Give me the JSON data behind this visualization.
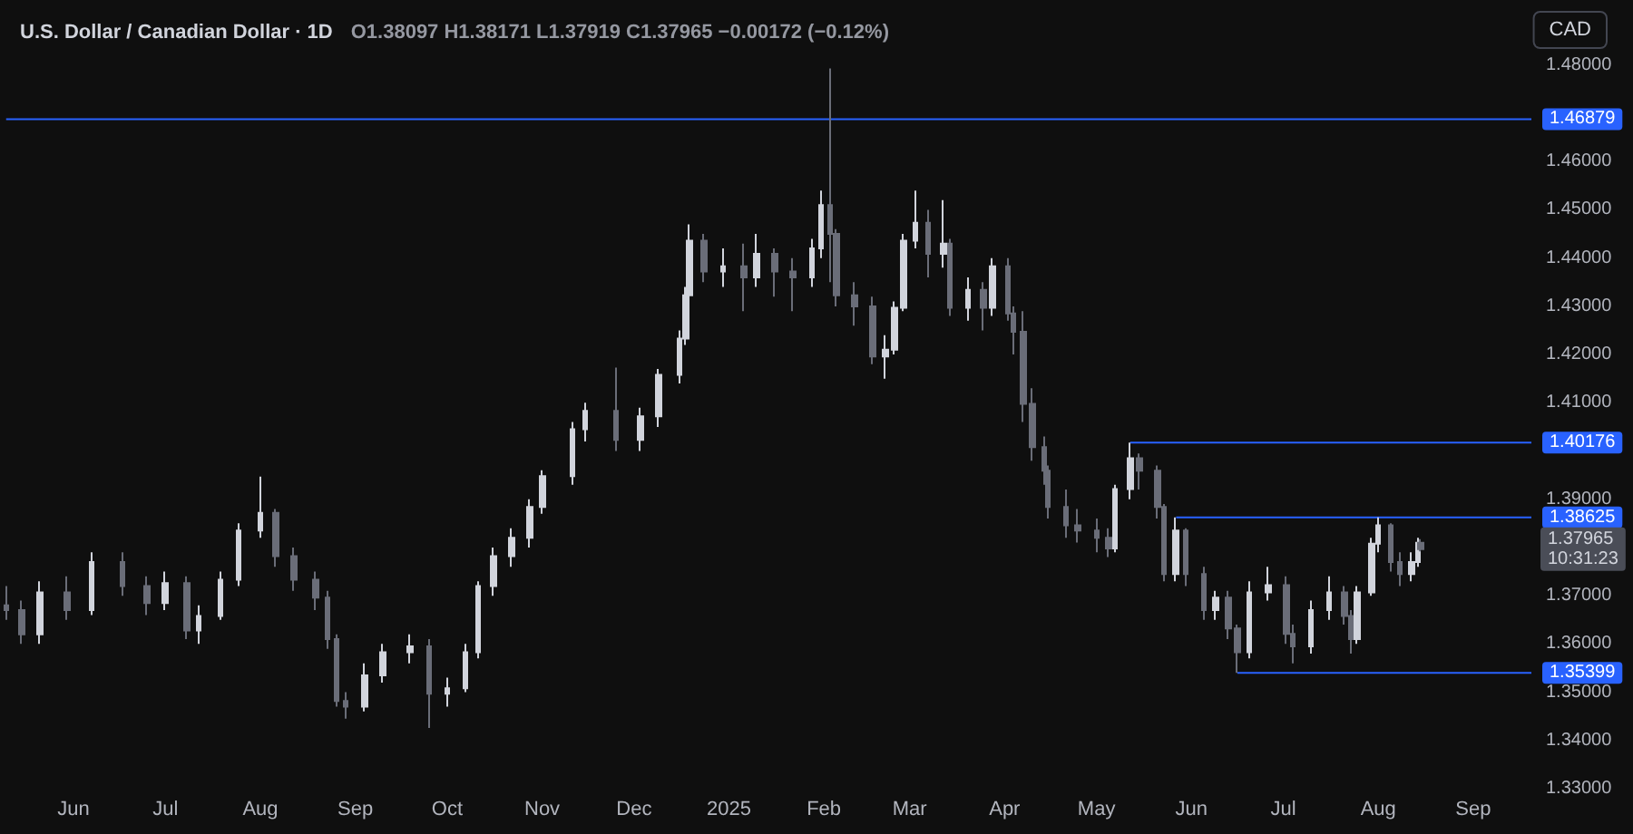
{
  "chart_data": {
    "type": "candlestick",
    "title": "U.S. Dollar / Canadian Dollar · 1D",
    "subtitle": "O1.38097 H1.38171 L1.37919 C1.37965 −0.00172 (−0.12%)",
    "ylabel": "CAD",
    "x": [
      "2024-05-10",
      "2024-05-15",
      "2024-05-21",
      "2024-05-30",
      "2024-06-07",
      "2024-06-17",
      "2024-06-25",
      "2024-07-01",
      "2024-07-08",
      "2024-07-12",
      "2024-07-19",
      "2024-07-25",
      "2024-08-01",
      "2024-08-06",
      "2024-08-12",
      "2024-08-19",
      "2024-08-23",
      "2024-08-26",
      "2024-08-29",
      "2024-09-04",
      "2024-09-10",
      "2024-09-19",
      "2024-09-25",
      "2024-10-01",
      "2024-10-07",
      "2024-10-11",
      "2024-10-16",
      "2024-10-22",
      "2024-10-28",
      "2024-11-01",
      "2024-11-11",
      "2024-11-15",
      "2024-11-25",
      "2024-12-03",
      "2024-12-09",
      "2024-12-16",
      "2024-12-18",
      "2024-12-19",
      "2024-12-24",
      "2024-12-30",
      "2025-01-06",
      "2025-01-10",
      "2025-01-16",
      "2025-01-22",
      "2025-01-28",
      "2025-01-31",
      "2025-02-03",
      "2025-02-05",
      "2025-02-11",
      "2025-02-17",
      "2025-02-21",
      "2025-02-24",
      "2025-02-27",
      "2025-03-03",
      "2025-03-07",
      "2025-03-12",
      "2025-03-14",
      "2025-03-20",
      "2025-03-25",
      "2025-03-28",
      "2025-04-02",
      "2025-04-04",
      "2025-04-07",
      "2025-04-10",
      "2025-04-14",
      "2025-04-15",
      "2025-04-21",
      "2025-04-25",
      "2025-05-01",
      "2025-05-05",
      "2025-05-07",
      "2025-05-12",
      "2025-05-15",
      "2025-05-21",
      "2025-05-23",
      "2025-05-27",
      "2025-05-30",
      "2025-06-05",
      "2025-06-09",
      "2025-06-13",
      "2025-06-16",
      "2025-06-20",
      "2025-06-26",
      "2025-07-02",
      "2025-07-04",
      "2025-07-10",
      "2025-07-16",
      "2025-07-21",
      "2025-07-23",
      "2025-07-25",
      "2025-07-30",
      "2025-08-01",
      "2025-08-05",
      "2025-08-08",
      "2025-08-12",
      "2025-08-14",
      "2025-08-15"
    ],
    "ohlc": [
      [
        1.368,
        1.372,
        1.365,
        1.367
      ],
      [
        1.367,
        1.369,
        1.36,
        1.362
      ],
      [
        1.362,
        1.373,
        1.36,
        1.3707
      ],
      [
        1.3707,
        1.374,
        1.365,
        1.367
      ],
      [
        1.367,
        1.379,
        1.366,
        1.377
      ],
      [
        1.377,
        1.379,
        1.37,
        1.372
      ],
      [
        1.372,
        1.374,
        1.366,
        1.3685
      ],
      [
        1.3685,
        1.375,
        1.367,
        1.3726
      ],
      [
        1.3726,
        1.374,
        1.361,
        1.3628
      ],
      [
        1.3628,
        1.368,
        1.36,
        1.3658
      ],
      [
        1.3658,
        1.375,
        1.365,
        1.3733
      ],
      [
        1.3733,
        1.385,
        1.372,
        1.3835
      ],
      [
        1.3835,
        1.3947,
        1.382,
        1.3872
      ],
      [
        1.3872,
        1.388,
        1.376,
        1.3782
      ],
      [
        1.3782,
        1.38,
        1.371,
        1.3733
      ],
      [
        1.3733,
        1.375,
        1.367,
        1.3696
      ],
      [
        1.3696,
        1.371,
        1.359,
        1.361
      ],
      [
        1.361,
        1.362,
        1.347,
        1.3482
      ],
      [
        1.3482,
        1.35,
        1.3445,
        1.347
      ],
      [
        1.347,
        1.356,
        1.346,
        1.3535
      ],
      [
        1.3535,
        1.36,
        1.352,
        1.3583
      ],
      [
        1.3583,
        1.362,
        1.356,
        1.3595
      ],
      [
        1.3595,
        1.361,
        1.3426,
        1.3497
      ],
      [
        1.3497,
        1.353,
        1.347,
        1.3508
      ],
      [
        1.3508,
        1.36,
        1.35,
        1.3583
      ],
      [
        1.3583,
        1.373,
        1.357,
        1.372
      ],
      [
        1.372,
        1.38,
        1.37,
        1.3782
      ],
      [
        1.3782,
        1.384,
        1.376,
        1.382
      ],
      [
        1.382,
        1.39,
        1.38,
        1.3884
      ],
      [
        1.3884,
        1.396,
        1.387,
        1.3948
      ],
      [
        1.3948,
        1.406,
        1.393,
        1.4045
      ],
      [
        1.4045,
        1.41,
        1.402,
        1.4083
      ],
      [
        1.4083,
        1.4173,
        1.4,
        1.4023
      ],
      [
        1.4023,
        1.409,
        1.4,
        1.4072
      ],
      [
        1.4072,
        1.417,
        1.405,
        1.4158
      ],
      [
        1.4158,
        1.425,
        1.414,
        1.4233
      ],
      [
        1.4233,
        1.434,
        1.422,
        1.4323
      ],
      [
        1.4323,
        1.447,
        1.43,
        1.4436
      ],
      [
        1.4436,
        1.445,
        1.435,
        1.4372
      ],
      [
        1.4372,
        1.442,
        1.434,
        1.4383
      ],
      [
        1.4383,
        1.443,
        1.429,
        1.436
      ],
      [
        1.436,
        1.445,
        1.434,
        1.4409
      ],
      [
        1.4409,
        1.442,
        1.432,
        1.4372
      ],
      [
        1.4372,
        1.44,
        1.429,
        1.436
      ],
      [
        1.436,
        1.444,
        1.434,
        1.442
      ],
      [
        1.442,
        1.454,
        1.44,
        1.451
      ],
      [
        1.451,
        1.4793,
        1.435,
        1.445
      ],
      [
        1.445,
        1.446,
        1.43,
        1.4323
      ],
      [
        1.4323,
        1.435,
        1.426,
        1.43
      ],
      [
        1.43,
        1.432,
        1.418,
        1.4196
      ],
      [
        1.4196,
        1.424,
        1.415,
        1.421
      ],
      [
        1.421,
        1.431,
        1.42,
        1.4297
      ],
      [
        1.4297,
        1.445,
        1.429,
        1.4436
      ],
      [
        1.4436,
        1.454,
        1.442,
        1.4473
      ],
      [
        1.4473,
        1.45,
        1.436,
        1.4409
      ],
      [
        1.4409,
        1.452,
        1.438,
        1.443
      ],
      [
        1.443,
        1.444,
        1.428,
        1.4297
      ],
      [
        1.4297,
        1.436,
        1.427,
        1.4334
      ],
      [
        1.4334,
        1.435,
        1.425,
        1.4297
      ],
      [
        1.4297,
        1.44,
        1.428,
        1.4383
      ],
      [
        1.4383,
        1.44,
        1.427,
        1.4285
      ],
      [
        1.4285,
        1.43,
        1.42,
        1.4247
      ],
      [
        1.4247,
        1.429,
        1.406,
        1.4098
      ],
      [
        1.4098,
        1.413,
        1.398,
        1.4008
      ],
      [
        1.4008,
        1.403,
        1.393,
        1.3959
      ],
      [
        1.3959,
        1.397,
        1.386,
        1.3884
      ],
      [
        1.3884,
        1.392,
        1.382,
        1.3846
      ],
      [
        1.3846,
        1.388,
        1.381,
        1.3835
      ],
      [
        1.3835,
        1.386,
        1.379,
        1.382
      ],
      [
        1.382,
        1.384,
        1.378,
        1.3798
      ],
      [
        1.3798,
        1.393,
        1.379,
        1.3921
      ],
      [
        1.3921,
        1.40176,
        1.39,
        1.3985
      ],
      [
        1.3985,
        1.3995,
        1.392,
        1.3959
      ],
      [
        1.3959,
        1.397,
        1.386,
        1.3884
      ],
      [
        1.3884,
        1.389,
        1.373,
        1.3745
      ],
      [
        1.3745,
        1.38625,
        1.373,
        1.3835
      ],
      [
        1.3835,
        1.384,
        1.372,
        1.3745
      ],
      [
        1.3745,
        1.376,
        1.365,
        1.367
      ],
      [
        1.367,
        1.371,
        1.365,
        1.3696
      ],
      [
        1.3696,
        1.371,
        1.361,
        1.3632
      ],
      [
        1.3632,
        1.364,
        1.35399,
        1.3583
      ],
      [
        1.3583,
        1.373,
        1.357,
        1.3707
      ],
      [
        1.3707,
        1.376,
        1.369,
        1.3722
      ],
      [
        1.3722,
        1.374,
        1.36,
        1.3621
      ],
      [
        1.3621,
        1.364,
        1.356,
        1.3595
      ],
      [
        1.3595,
        1.369,
        1.358,
        1.367
      ],
      [
        1.367,
        1.374,
        1.365,
        1.3707
      ],
      [
        1.3707,
        1.372,
        1.364,
        1.3658
      ],
      [
        1.3658,
        1.367,
        1.358,
        1.361
      ],
      [
        1.361,
        1.372,
        1.36,
        1.3707
      ],
      [
        1.3707,
        1.382,
        1.37,
        1.3808
      ],
      [
        1.3808,
        1.38625,
        1.379,
        1.3846
      ],
      [
        1.3846,
        1.385,
        1.375,
        1.377
      ],
      [
        1.377,
        1.379,
        1.372,
        1.3745
      ],
      [
        1.3745,
        1.379,
        1.373,
        1.377
      ],
      [
        1.377,
        1.382,
        1.376,
        1.38097
      ],
      [
        1.38097,
        1.38171,
        1.37919,
        1.37965
      ]
    ],
    "series": [
      {
        "type": "line",
        "color": "#2962ff",
        "x": [
          "2024-05-10",
          "2025-09-20"
        ],
        "values": [
          1.46879,
          1.46879
        ],
        "value_labels": [
          null,
          "1.46879"
        ]
      },
      {
        "type": "line",
        "color": "#2962ff",
        "x": [
          "2025-05-12",
          "2025-09-20"
        ],
        "values": [
          1.40176,
          1.40176
        ],
        "value_labels": [
          null,
          "1.40176"
        ]
      },
      {
        "type": "line",
        "color": "#2962ff",
        "x": [
          "2025-05-27",
          "2025-09-20"
        ],
        "values": [
          1.38625,
          1.38625
        ],
        "value_labels": [
          null,
          "1.38625"
        ]
      },
      {
        "type": "line",
        "color": "#2962ff",
        "x": [
          "2025-06-16",
          "2025-09-20"
        ],
        "values": [
          1.35399,
          1.35399
        ],
        "value_labels": [
          null,
          "1.35399"
        ]
      }
    ],
    "annotations": [
      "1.37965\n10:31:23"
    ],
    "xlim": [
      "2024-05-08",
      "2025-09-20"
    ],
    "xticks": [
      {
        "value": "2024-06-01",
        "label": "Jun"
      },
      {
        "value": "2024-07-01",
        "label": "Jul"
      },
      {
        "value": "2024-08-01",
        "label": "Aug"
      },
      {
        "value": "2024-09-01",
        "label": "Sep"
      },
      {
        "value": "2024-10-01",
        "label": "Oct"
      },
      {
        "value": "2024-11-01",
        "label": "Nov"
      },
      {
        "value": "2024-12-01",
        "label": "Dec"
      },
      {
        "value": "2025-01-01",
        "label": "2025"
      },
      {
        "value": "2025-02-01",
        "label": "Feb"
      },
      {
        "value": "2025-03-01",
        "label": "Mar"
      },
      {
        "value": "2025-04-01",
        "label": "Apr"
      },
      {
        "value": "2025-05-01",
        "label": "May"
      },
      {
        "value": "2025-06-01",
        "label": "Jun"
      },
      {
        "value": "2025-07-01",
        "label": "Jul"
      },
      {
        "value": "2025-08-01",
        "label": "Aug"
      },
      {
        "value": "2025-09-01",
        "label": "Sep"
      }
    ],
    "ylim": [
      1.33,
      1.4935
    ],
    "yticks": [
      {
        "value": 1.33,
        "label": "1.33000"
      },
      {
        "value": 1.34,
        "label": "1.34000"
      },
      {
        "value": 1.35,
        "label": "1.35000"
      },
      {
        "value": 1.36,
        "label": "1.36000"
      },
      {
        "value": 1.37,
        "label": "1.37000"
      },
      {
        "value": 1.39,
        "label": "1.39000"
      },
      {
        "value": 1.41,
        "label": "1.41000"
      },
      {
        "value": 1.42,
        "label": "1.42000"
      },
      {
        "value": 1.43,
        "label": "1.43000"
      },
      {
        "value": 1.44,
        "label": "1.44000"
      },
      {
        "value": 1.45,
        "label": "1.45000"
      },
      {
        "value": 1.46,
        "label": "1.46000"
      },
      {
        "value": 1.48,
        "label": "1.48000"
      }
    ]
  }
}
